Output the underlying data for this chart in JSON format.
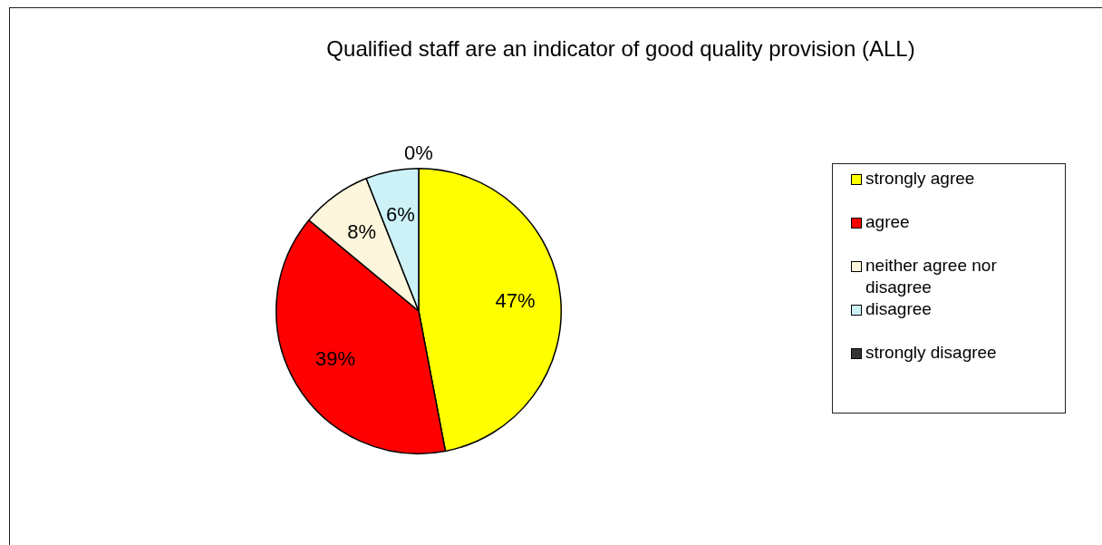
{
  "chart_data": {
    "type": "pie",
    "title": "Qualified staff are an indicator of good quality provision (ALL)",
    "categories": [
      "strongly agree",
      "agree",
      "neither agree nor disagree",
      "disagree",
      "strongly disagree"
    ],
    "values": [
      47,
      39,
      8,
      6,
      0
    ],
    "colors": [
      "#ffff00",
      "#ff0000",
      "#fdf6dc",
      "#ccf2f8",
      "#333333"
    ],
    "value_labels": [
      "47%",
      "39%",
      "8%",
      "6%",
      "0%"
    ],
    "legend": "right"
  }
}
